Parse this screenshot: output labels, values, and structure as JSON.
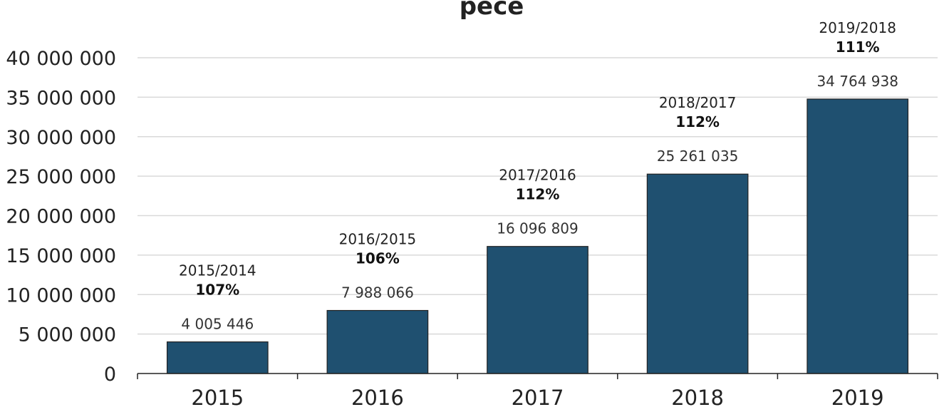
{
  "chart_data": {
    "type": "bar",
    "title": "pece",
    "categories": [
      "2015",
      "2016",
      "2017",
      "2018",
      "2019"
    ],
    "values": [
      4005446,
      7988066,
      16096809,
      25261035,
      34764938
    ],
    "value_labels": [
      "4 005 446",
      "7 988 066",
      "16 096 809",
      "25 261 035",
      "34 764 938"
    ],
    "growth_labels": [
      "2015/2014",
      "2016/2015",
      "2017/2016",
      "2018/2017",
      "2019/2018"
    ],
    "growth_percents": [
      "107%",
      "106%",
      "112%",
      "112%",
      "111%"
    ],
    "ylim": [
      0,
      40000000
    ],
    "yticks": [
      0,
      5000000,
      10000000,
      15000000,
      20000000,
      25000000,
      30000000,
      35000000,
      40000000
    ],
    "ytick_labels": [
      "0",
      "5 000 000",
      "10 000 000",
      "15 000 000",
      "20 000 000",
      "25 000 000",
      "30 000 000",
      "35 000 000",
      "40 000 000"
    ],
    "xlabel": "",
    "ylabel": "",
    "grid": true,
    "bar_color": "#1f5070"
  }
}
